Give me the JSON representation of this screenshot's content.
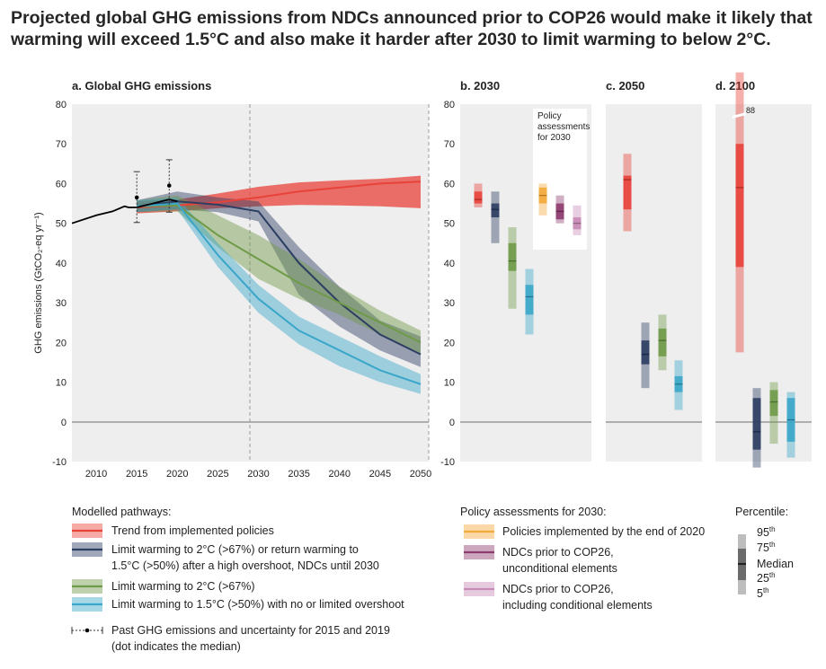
{
  "title_line1": "Projected global GHG emissions from NDCs announced prior to COP26 would make it likely that",
  "title_line2": "warming will exceed 1.5°C and also make it harder after 2030 to limit warming to below 2°C.",
  "panels": {
    "a": "a. Global GHG emissions",
    "b": "b. 2030",
    "c": "c. 2050",
    "d": "d. 2100"
  },
  "ylabel": "GHG emissions (GtCO₂-eq yr⁻¹)",
  "callout": [
    "Policy",
    "assessments",
    "for 2030"
  ],
  "break_label": "88",
  "colors": {
    "policies": "#e8433a",
    "ndc2030": "#2d3e63",
    "c2": "#6f9a48",
    "c15": "#3aa6c9",
    "implemented": "#f4a93b",
    "ndc_uncond": "#8d3c6e",
    "ndc_cond": "#c78bb7",
    "historical": "#000000",
    "zero_line": "#999999",
    "panel_bg": "#eeeeee"
  },
  "chart_data": [
    {
      "type": "line",
      "panel": "a. Global GHG emissions",
      "ylabel": "GHG emissions (GtCO₂-eq yr⁻¹)",
      "xlim": [
        2007,
        2051
      ],
      "ylim": [
        -10,
        80
      ],
      "xticks": [
        2010,
        2015,
        2020,
        2025,
        2030,
        2035,
        2040,
        2045,
        2050
      ],
      "yticks": [
        -10,
        0,
        10,
        20,
        30,
        40,
        50,
        60,
        70,
        80
      ],
      "dashed_vlines": [
        2030,
        2050
      ],
      "historical": {
        "x": [
          2007,
          2010,
          2012,
          2013.5,
          2014,
          2015,
          2016,
          2017,
          2018,
          2019,
          2020
        ],
        "y": [
          50,
          52,
          53,
          54.3,
          54,
          54,
          54.5,
          55,
          55.5,
          56,
          55.5
        ]
      },
      "past_uncertainty": [
        {
          "year": 2015,
          "median": 56.5,
          "low": 50.2,
          "high": 63
        },
        {
          "year": 2019,
          "median": 59.5,
          "low": 52.8,
          "high": 66
        }
      ],
      "series": [
        {
          "key": "policies",
          "name": "Trend from implemented policies",
          "x": [
            2015,
            2020,
            2025,
            2030,
            2035,
            2040,
            2045,
            2050
          ],
          "median": [
            54,
            54.5,
            55.3,
            56.5,
            58,
            59,
            60,
            60.5
          ],
          "low": [
            52.5,
            53,
            53.8,
            54.3,
            54.6,
            54.5,
            54.3,
            53.8
          ],
          "high": [
            55.5,
            56,
            57.5,
            59.2,
            60.3,
            60.8,
            61.2,
            62
          ]
        },
        {
          "key": "ndc2030",
          "name": "Limit warming to 2°C (>67%) or return warming to 1.5°C (>50%) after a high overshoot, NDCs until 2030",
          "x": [
            2015,
            2020,
            2025,
            2030,
            2035,
            2040,
            2045,
            2050
          ],
          "median": [
            54.3,
            55.5,
            54.7,
            53,
            40,
            30,
            22,
            17
          ],
          "low": [
            52.8,
            53.5,
            52.8,
            50.5,
            32,
            24,
            18,
            13.8
          ],
          "high": [
            55.8,
            58,
            56.5,
            55.5,
            44,
            34,
            25.5,
            21.5
          ]
        },
        {
          "key": "c2",
          "name": "Limit warming to 2°C (>67%)",
          "x": [
            2015,
            2020,
            2025,
            2030,
            2035,
            2040,
            2045,
            2050
          ],
          "median": [
            54.3,
            54.5,
            47,
            41,
            35,
            30,
            25,
            20
          ],
          "low": [
            52.8,
            53,
            44,
            36,
            31,
            27,
            22,
            17
          ],
          "high": [
            55.8,
            57,
            52,
            47,
            41,
            34,
            28,
            23
          ]
        },
        {
          "key": "c15",
          "name": "Limit warming to 1.5°C (>50%) with no or limited overshoot",
          "x": [
            2015,
            2020,
            2025,
            2030,
            2035,
            2040,
            2045,
            2050
          ],
          "median": [
            54.3,
            55,
            42,
            31,
            23,
            18,
            13,
            9.5
          ],
          "low": [
            52.8,
            53.5,
            39,
            27.5,
            19.5,
            14,
            10,
            7
          ],
          "high": [
            55.8,
            56.5,
            45,
            34.5,
            26.5,
            21.5,
            16.5,
            12
          ]
        }
      ]
    },
    {
      "type": "boxplot",
      "panel": "b. 2030",
      "ylim": [
        -10,
        80
      ],
      "boxes": [
        {
          "key": "policies",
          "p5": 54,
          "p25": 55,
          "median": 56,
          "p75": 58,
          "p95": 60
        },
        {
          "key": "ndc2030",
          "p5": 45,
          "p25": 51.5,
          "median": 53.5,
          "p75": 55,
          "p95": 58
        },
        {
          "key": "c2",
          "p5": 28.5,
          "p25": 38,
          "median": 40.5,
          "p75": 45,
          "p95": 49
        },
        {
          "key": "c15",
          "p5": 22,
          "p25": 27,
          "median": 31.5,
          "p75": 34.5,
          "p95": 38.5
        },
        {
          "key": "implemented",
          "p5": 52,
          "p25": 55,
          "median": 57,
          "p75": 59,
          "p95": 60
        },
        {
          "key": "ndc_uncond",
          "p5": 50,
          "p25": 51,
          "median": 53,
          "p75": 55,
          "p95": 57
        },
        {
          "key": "ndc_cond",
          "p5": 47,
          "p25": 48.5,
          "median": 50,
          "p75": 51.5,
          "p95": 54.5
        }
      ]
    },
    {
      "type": "boxplot",
      "panel": "c. 2050",
      "ylim": [
        -10,
        80
      ],
      "boxes": [
        {
          "key": "policies",
          "p5": 48,
          "p25": 53.5,
          "median": 61,
          "p75": 62,
          "p95": 67.5
        },
        {
          "key": "ndc2030",
          "p5": 8.5,
          "p25": 14.5,
          "median": 17,
          "p75": 20.5,
          "p95": 25
        },
        {
          "key": "c2",
          "p5": 13,
          "p25": 16.5,
          "median": 20.5,
          "p75": 23.5,
          "p95": 27
        },
        {
          "key": "c15",
          "p5": 3,
          "p25": 7.5,
          "median": 9.5,
          "p75": 11.5,
          "p95": 15.5
        }
      ]
    },
    {
      "type": "boxplot",
      "panel": "d. 2100",
      "ylim": [
        -10,
        80
      ],
      "boxes": [
        {
          "key": "policies",
          "p5": 17.5,
          "p25": 39,
          "median": 59,
          "p75": 70,
          "p95": 88
        },
        {
          "key": "ndc2030",
          "p5": -11.5,
          "p25": -7,
          "median": -2.5,
          "p75": 6,
          "p95": 8.5
        },
        {
          "key": "c2",
          "p5": -5.5,
          "p25": 1.5,
          "median": 5,
          "p75": 8,
          "p95": 10
        },
        {
          "key": "c15",
          "p5": -9,
          "p25": -5,
          "median": 0.5,
          "p75": 6,
          "p95": 7.5
        }
      ]
    }
  ],
  "legend": {
    "pathways_title": "Modelled pathways:",
    "pathways": [
      {
        "key": "policies",
        "lines": [
          "Trend from implemented policies"
        ]
      },
      {
        "key": "ndc2030",
        "lines": [
          "Limit warming to 2°C (>67%) or return warming to",
          "1.5°C (>50%) after a high overshoot, NDCs until 2030"
        ]
      },
      {
        "key": "c2",
        "lines": [
          "Limit warming to 2°C (>67%)"
        ]
      },
      {
        "key": "c15",
        "lines": [
          "Limit warming to 1.5°C (>50%) with no or limited overshoot"
        ]
      }
    ],
    "past_lines": [
      "Past GHG emissions and uncertainty for 2015 and 2019",
      "(dot indicates the median)"
    ],
    "policy_title": "Policy assessments for 2030:",
    "policy": [
      {
        "key": "implemented",
        "lines": [
          "Policies implemented by the end of 2020"
        ]
      },
      {
        "key": "ndc_uncond",
        "lines": [
          "NDCs prior to COP26,",
          "unconditional elements"
        ]
      },
      {
        "key": "ndc_cond",
        "lines": [
          "NDCs prior to COP26,",
          "including conditional elements"
        ]
      }
    ],
    "percentile_title": "Percentile:",
    "percentile_labels": [
      {
        "base": "95",
        "sup": "th"
      },
      {
        "base": "75",
        "sup": "th"
      },
      {
        "base": "Median",
        "sup": ""
      },
      {
        "base": "25",
        "sup": "th"
      },
      {
        "base": "5",
        "sup": "th"
      }
    ]
  }
}
